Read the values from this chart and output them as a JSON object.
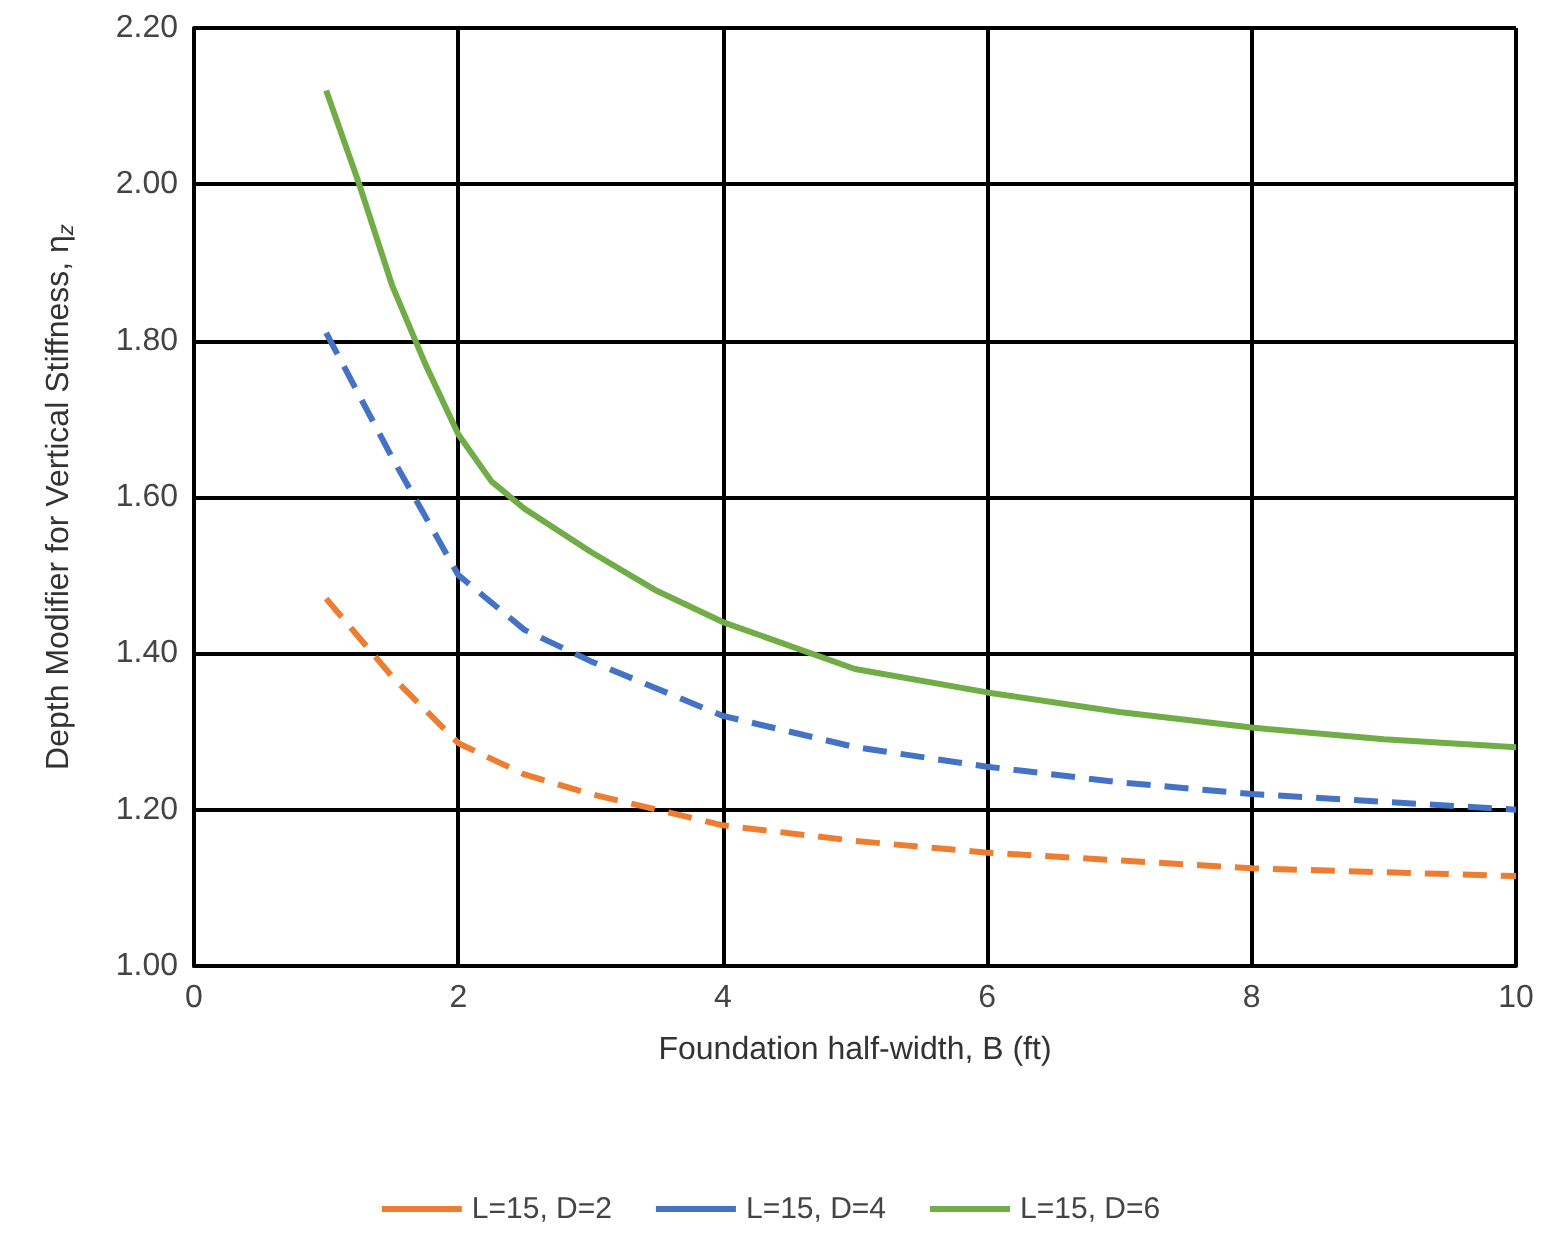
{
  "chart_data": {
    "type": "line",
    "xlabel": "Foundation half-width, B (ft)",
    "ylabel": "Depth Modifier for Vertical Stiffness, η$_{z}$",
    "xlim": [
      0,
      10
    ],
    "xticks": [
      0,
      2,
      4,
      6,
      8,
      10
    ],
    "ylim": [
      1.0,
      2.2
    ],
    "yticks": [
      {
        "value": 1.0,
        "label": "1.00"
      },
      {
        "value": 1.2,
        "label": "1.20"
      },
      {
        "value": 1.4,
        "label": "1.40"
      },
      {
        "value": 1.6,
        "label": "1.60"
      },
      {
        "value": 1.8,
        "label": "1.80"
      },
      {
        "value": 2.0,
        "label": "2.00"
      },
      {
        "value": 2.2,
        "label": "2.20"
      }
    ],
    "grid": true,
    "legend": "bottom",
    "marker": "none",
    "series": [
      {
        "name": "L=15, D=2",
        "color": "#ed7d31",
        "line_style": "dashed",
        "x": [
          1,
          1.5,
          2,
          2.5,
          3,
          3.5,
          4,
          5,
          6,
          7,
          8,
          9,
          10
        ],
        "values": [
          1.47,
          1.37,
          1.285,
          1.245,
          1.22,
          1.2,
          1.18,
          1.16,
          1.145,
          1.135,
          1.125,
          1.12,
          1.115
        ]
      },
      {
        "name": "L=15, D=4",
        "color": "#4472c4",
        "line_style": "dashed",
        "x": [
          1,
          1.5,
          2,
          2.5,
          3,
          3.5,
          4,
          5,
          6,
          7,
          8,
          9,
          10
        ],
        "values": [
          1.81,
          1.65,
          1.5,
          1.43,
          1.39,
          1.355,
          1.32,
          1.28,
          1.255,
          1.235,
          1.22,
          1.21,
          1.2
        ]
      },
      {
        "name": "L=15, D=6",
        "color": "#70ad47",
        "line_style": "solid",
        "x": [
          1,
          1.25,
          1.5,
          1.75,
          2,
          2.25,
          2.5,
          3,
          3.5,
          4,
          5,
          6,
          7,
          8,
          9,
          10
        ],
        "values": [
          2.12,
          2.0,
          1.87,
          1.77,
          1.68,
          1.62,
          1.585,
          1.53,
          1.48,
          1.44,
          1.38,
          1.35,
          1.325,
          1.305,
          1.29,
          1.28
        ]
      }
    ]
  }
}
